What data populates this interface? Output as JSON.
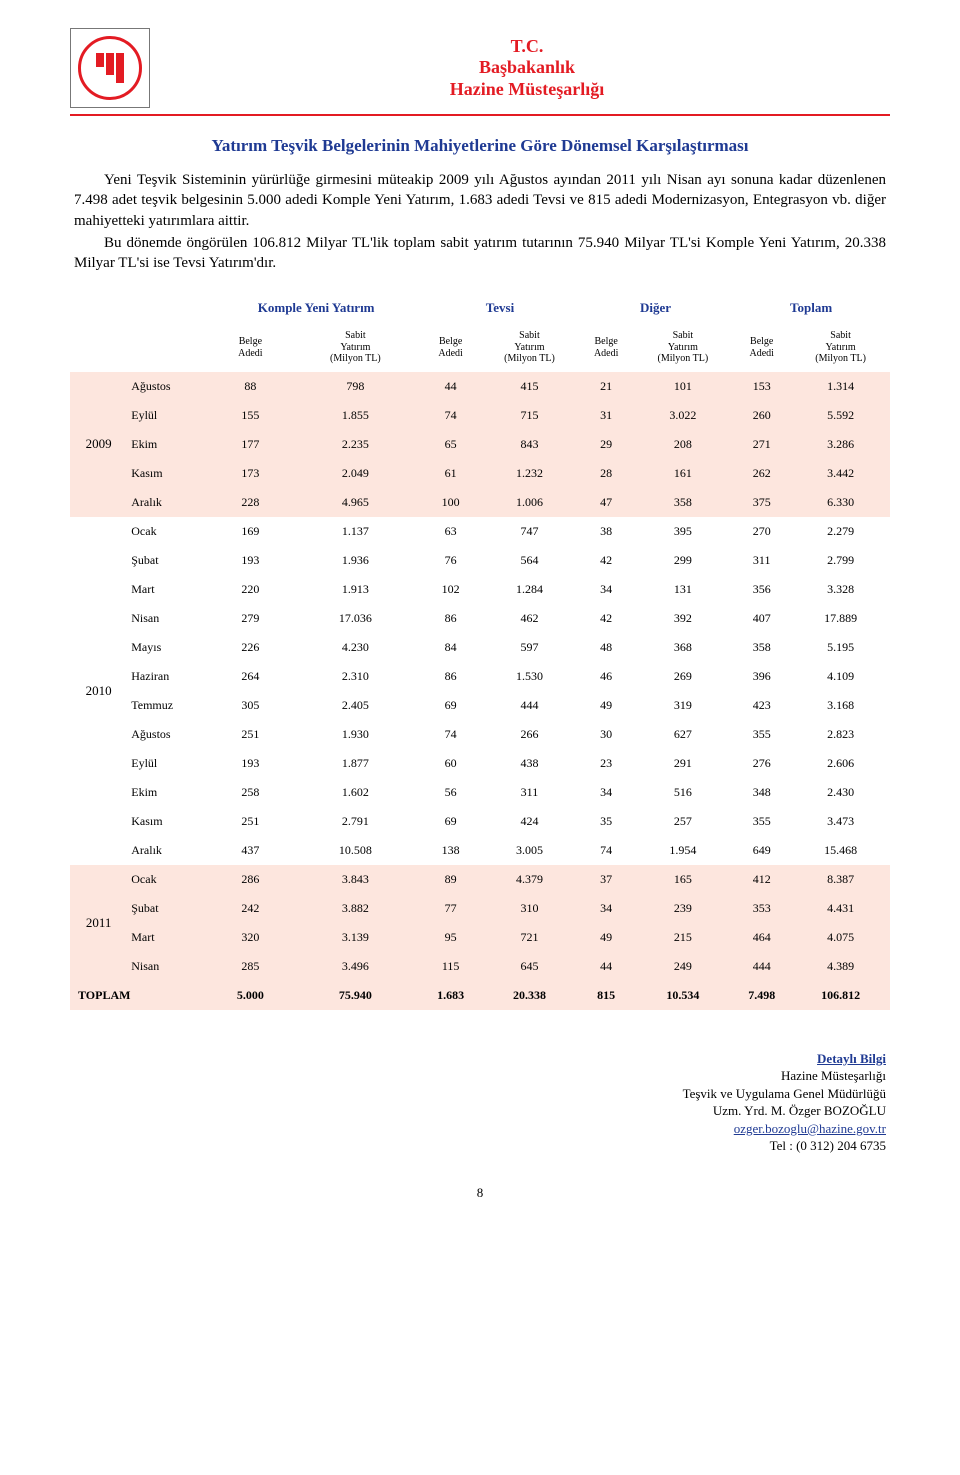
{
  "header": {
    "line1": "T.C.",
    "line2": "Başbakanlık",
    "line3": "Hazine Müsteşarlığı"
  },
  "title": "Yatırım Teşvik Belgelerinin Mahiyetlerine Göre Dönemsel Karşılaştırması",
  "intro_p1": "Yeni Teşvik Sisteminin yürürlüğe girmesini müteakip 2009 yılı Ağustos ayından 2011 yılı Nisan ayı sonuna kadar düzenlenen 7.498 adet teşvik belgesinin 5.000 adedi Komple Yeni Yatırım, 1.683 adedi Tevsi ve 815 adedi Modernizasyon, Entegrasyon vb. diğer mahiyetteki yatırımlara aittir.",
  "intro_p2": "Bu dönemde öngörülen 106.812 Milyar TL'lik toplam sabit yatırım tutarının 75.940 Milyar TL'si Komple Yeni Yatırım, 20.338 Milyar TL'si ise Tevsi Yatırım'dır.",
  "groups": [
    "Komple Yeni Yatırım",
    "Tevsi",
    "Diğer",
    "Toplam"
  ],
  "sub_a": "Belge\nAdedi",
  "sub_b": "Sabit\nYatırım\n(Milyon TL)",
  "years": {
    "y2009": {
      "label": "2009",
      "css": "y2009"
    },
    "y2010": {
      "label": "2010",
      "css": "y2010"
    },
    "y2011": {
      "label": "2011",
      "css": "y2011"
    }
  },
  "rows": [
    {
      "y": "y2009",
      "m": "Ağustos",
      "v": [
        "88",
        "798",
        "44",
        "415",
        "21",
        "101",
        "153",
        "1.314"
      ]
    },
    {
      "y": "y2009",
      "m": "Eylül",
      "v": [
        "155",
        "1.855",
        "74",
        "715",
        "31",
        "3.022",
        "260",
        "5.592"
      ]
    },
    {
      "y": "y2009",
      "m": "Ekim",
      "v": [
        "177",
        "2.235",
        "65",
        "843",
        "29",
        "208",
        "271",
        "3.286"
      ]
    },
    {
      "y": "y2009",
      "m": "Kasım",
      "v": [
        "173",
        "2.049",
        "61",
        "1.232",
        "28",
        "161",
        "262",
        "3.442"
      ]
    },
    {
      "y": "y2009",
      "m": "Aralık",
      "v": [
        "228",
        "4.965",
        "100",
        "1.006",
        "47",
        "358",
        "375",
        "6.330"
      ]
    },
    {
      "y": "y2010",
      "m": "Ocak",
      "v": [
        "169",
        "1.137",
        "63",
        "747",
        "38",
        "395",
        "270",
        "2.279"
      ]
    },
    {
      "y": "y2010",
      "m": "Şubat",
      "v": [
        "193",
        "1.936",
        "76",
        "564",
        "42",
        "299",
        "311",
        "2.799"
      ]
    },
    {
      "y": "y2010",
      "m": "Mart",
      "v": [
        "220",
        "1.913",
        "102",
        "1.284",
        "34",
        "131",
        "356",
        "3.328"
      ]
    },
    {
      "y": "y2010",
      "m": "Nisan",
      "v": [
        "279",
        "17.036",
        "86",
        "462",
        "42",
        "392",
        "407",
        "17.889"
      ]
    },
    {
      "y": "y2010",
      "m": "Mayıs",
      "v": [
        "226",
        "4.230",
        "84",
        "597",
        "48",
        "368",
        "358",
        "5.195"
      ]
    },
    {
      "y": "y2010",
      "m": "Haziran",
      "v": [
        "264",
        "2.310",
        "86",
        "1.530",
        "46",
        "269",
        "396",
        "4.109"
      ]
    },
    {
      "y": "y2010",
      "m": "Temmuz",
      "v": [
        "305",
        "2.405",
        "69",
        "444",
        "49",
        "319",
        "423",
        "3.168"
      ]
    },
    {
      "y": "y2010",
      "m": "Ağustos",
      "v": [
        "251",
        "1.930",
        "74",
        "266",
        "30",
        "627",
        "355",
        "2.823"
      ]
    },
    {
      "y": "y2010",
      "m": "Eylül",
      "v": [
        "193",
        "1.877",
        "60",
        "438",
        "23",
        "291",
        "276",
        "2.606"
      ]
    },
    {
      "y": "y2010",
      "m": "Ekim",
      "v": [
        "258",
        "1.602",
        "56",
        "311",
        "34",
        "516",
        "348",
        "2.430"
      ]
    },
    {
      "y": "y2010",
      "m": "Kasım",
      "v": [
        "251",
        "2.791",
        "69",
        "424",
        "35",
        "257",
        "355",
        "3.473"
      ]
    },
    {
      "y": "y2010",
      "m": "Aralık",
      "v": [
        "437",
        "10.508",
        "138",
        "3.005",
        "74",
        "1.954",
        "649",
        "15.468"
      ]
    },
    {
      "y": "y2011",
      "m": "Ocak",
      "v": [
        "286",
        "3.843",
        "89",
        "4.379",
        "37",
        "165",
        "412",
        "8.387"
      ]
    },
    {
      "y": "y2011",
      "m": "Şubat",
      "v": [
        "242",
        "3.882",
        "77",
        "310",
        "34",
        "239",
        "353",
        "4.431"
      ]
    },
    {
      "y": "y2011",
      "m": "Mart",
      "v": [
        "320",
        "3.139",
        "95",
        "721",
        "49",
        "215",
        "464",
        "4.075"
      ]
    },
    {
      "y": "y2011",
      "m": "Nisan",
      "v": [
        "285",
        "3.496",
        "115",
        "645",
        "44",
        "249",
        "444",
        "4.389"
      ]
    }
  ],
  "total": {
    "label": "TOPLAM",
    "v": [
      "5.000",
      "75.940",
      "1.683",
      "20.338",
      "815",
      "10.534",
      "7.498",
      "106.812"
    ]
  },
  "footer": {
    "link": "Detaylı Bilgi",
    "l1": "Hazine Müsteşarlığı",
    "l2": "Teşvik ve Uygulama Genel Müdürlüğü",
    "l3": "Uzm. Yrd.  M. Özger BOZOĞLU",
    "l4": "ozger.bozoglu@hazine.gov.tr",
    "l5": "Tel : (0 312) 204 6735"
  },
  "page_number": "8"
}
